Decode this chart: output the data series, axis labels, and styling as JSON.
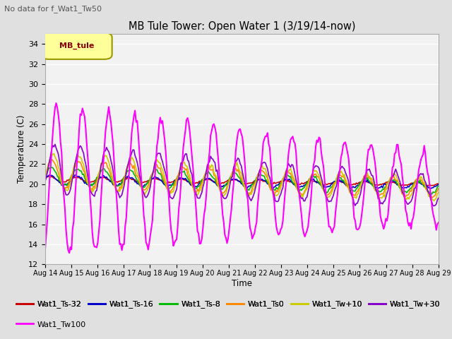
{
  "title": "MB Tule Tower: Open Water 1 (3/19/14-now)",
  "suptitle": "No data for f_Wat1_Tw50",
  "xlabel": "Time",
  "ylabel": "Temperature (C)",
  "ylim": [
    12,
    35
  ],
  "yticks": [
    12,
    14,
    16,
    18,
    20,
    22,
    24,
    26,
    28,
    30,
    32,
    34
  ],
  "bg_color": "#e0e0e0",
  "plot_bg": "#f2f2f2",
  "legend_label": "MB_tule",
  "legend_text_color": "#880000",
  "series": {
    "Wat1_Ts-32": {
      "color": "#cc0000",
      "lw": 1.2
    },
    "Wat1_Ts-16": {
      "color": "#0000cc",
      "lw": 1.2
    },
    "Wat1_Ts-8": {
      "color": "#00bb00",
      "lw": 1.2
    },
    "Wat1_Ts0": {
      "color": "#ff8800",
      "lw": 1.2
    },
    "Wat1_Tw+10": {
      "color": "#cccc00",
      "lw": 1.2
    },
    "Wat1_Tw+30": {
      "color": "#8800cc",
      "lw": 1.2
    },
    "Wat1_Tw100": {
      "color": "#ff00ff",
      "lw": 1.5
    }
  },
  "xtick_labels": [
    "Aug 14",
    "Aug 15",
    "Aug 16",
    "Aug 17",
    "Aug 18",
    "Aug 19",
    "Aug 20",
    "Aug 21",
    "Aug 22",
    "Aug 23",
    "Aug 24",
    "Aug 25",
    "Aug 26",
    "Aug 27",
    "Aug 28",
    "Aug 29"
  ],
  "n_days": 15
}
